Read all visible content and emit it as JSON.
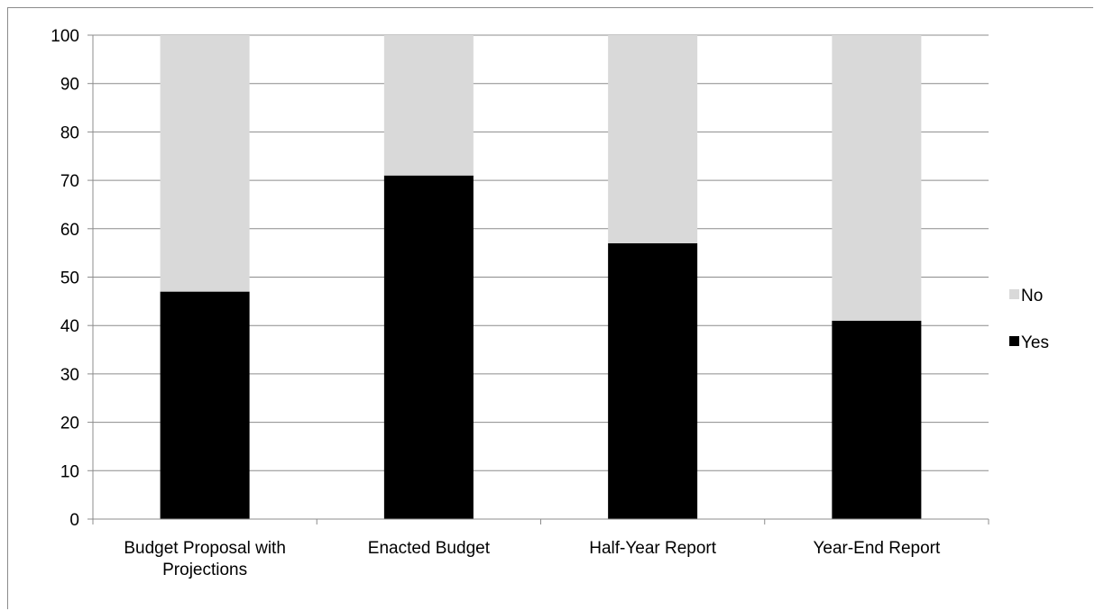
{
  "chart_data": {
    "type": "bar",
    "stacked": true,
    "title": "",
    "xlabel": "",
    "ylabel": "",
    "categories": [
      [
        "Budget Proposal with",
        "Projections"
      ],
      [
        "Enacted Budget"
      ],
      [
        "Half-Year Report"
      ],
      [
        "Year-End Report"
      ]
    ],
    "series": [
      {
        "name": "Yes",
        "values": [
          47,
          71,
          57,
          41
        ],
        "color": "#000000"
      },
      {
        "name": "No",
        "values": [
          53,
          29,
          43,
          59
        ],
        "color": "#d9d9d9"
      }
    ],
    "ylim": [
      0,
      100
    ],
    "yticks": [
      0,
      10,
      20,
      30,
      40,
      50,
      60,
      70,
      80,
      90,
      100
    ],
    "grid": true,
    "gridColor": "#8c8c8c",
    "legend": {
      "placement": "right",
      "order": [
        "No",
        "Yes"
      ]
    }
  }
}
